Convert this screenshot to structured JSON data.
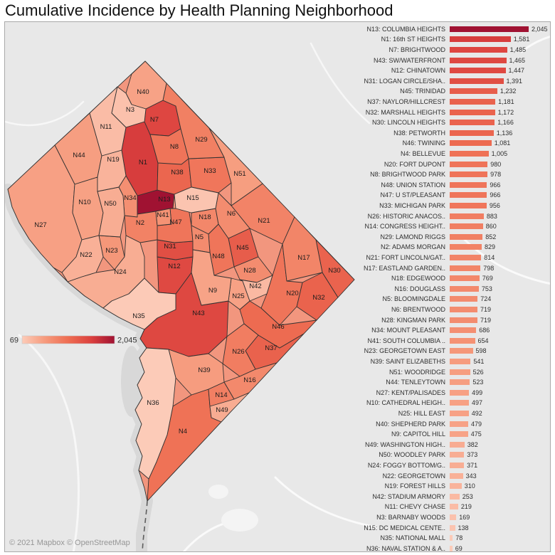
{
  "title": "Cumulative Incidence by Health Planning Neighborhood",
  "attribution": "© 2021 Mapbox © OpenStreetMap",
  "legend": {
    "min_label": "69",
    "max_label": "2,045",
    "min_value": 69,
    "max_value": 2045
  },
  "color_scale": {
    "min_value": 69,
    "max_value": 2045,
    "stops": [
      "#fccbb8",
      "#f69a7c",
      "#ee6d52",
      "#db403e",
      "#a01232"
    ]
  },
  "chart_data": {
    "type": "bar",
    "orientation": "horizontal",
    "title": "Cumulative Incidence by Health Planning Neighborhood",
    "value_range": [
      69,
      2045
    ],
    "legend_position": "middle-left-on-map",
    "grid": false,
    "neighborhoods": [
      {
        "code": "N13",
        "label": "N13: COLUMBIA HEIGHTS",
        "value": 2045
      },
      {
        "code": "N1",
        "label": "N1: 16th ST HEIGHTS",
        "value": 1581
      },
      {
        "code": "N7",
        "label": "N7: BRIGHTWOOD",
        "value": 1485
      },
      {
        "code": "N43",
        "label": "N43: SW/WATERFRONT",
        "value": 1465
      },
      {
        "code": "N12",
        "label": "N12: CHINATOWN",
        "value": 1447
      },
      {
        "code": "N31",
        "label": "N31: LOGAN CIRCLE/SHA..",
        "value": 1391
      },
      {
        "code": "N45",
        "label": "N45: TRINIDAD",
        "value": 1232
      },
      {
        "code": "N37",
        "label": "N37: NAYLOR/HILLCREST",
        "value": 1181
      },
      {
        "code": "N32",
        "label": "N32: MARSHALL HEIGHTS",
        "value": 1172
      },
      {
        "code": "N30",
        "label": "N30: LINCOLN HEIGHTS",
        "value": 1166
      },
      {
        "code": "N38",
        "label": "N38: PETWORTH",
        "value": 1136
      },
      {
        "code": "N46",
        "label": "N46: TWINING",
        "value": 1081
      },
      {
        "code": "N4",
        "label": "N4: BELLEVUE",
        "value": 1005
      },
      {
        "code": "N20",
        "label": "N20: FORT DUPONT",
        "value": 980
      },
      {
        "code": "N8",
        "label": "N8: BRIGHTWOOD PARK",
        "value": 978
      },
      {
        "code": "N48",
        "label": "N48: UNION STATION",
        "value": 966
      },
      {
        "code": "N47",
        "label": "N47: U ST/PLEASANT",
        "value": 966
      },
      {
        "code": "N33",
        "label": "N33: MICHIGAN PARK",
        "value": 956
      },
      {
        "code": "N26",
        "label": "N26: HISTORIC ANACOS..",
        "value": 883
      },
      {
        "code": "N14",
        "label": "N14: CONGRESS HEIGHT..",
        "value": 860
      },
      {
        "code": "N29",
        "label": "N29: LAMOND RIGGS",
        "value": 852
      },
      {
        "code": "N2",
        "label": "N2: ADAMS MORGAN",
        "value": 829
      },
      {
        "code": "N21",
        "label": "N21: FORT LINCOLN/GAT..",
        "value": 814
      },
      {
        "code": "N17",
        "label": "N17: EASTLAND GARDEN..",
        "value": 798
      },
      {
        "code": "N18",
        "label": "N18: EDGEWOOD",
        "value": 769
      },
      {
        "code": "N16",
        "label": "N16: DOUGLASS",
        "value": 753
      },
      {
        "code": "N5",
        "label": "N5: BLOOMINGDALE",
        "value": 724
      },
      {
        "code": "N6",
        "label": "N6: BRENTWOOD",
        "value": 719
      },
      {
        "code": "N28",
        "label": "N28: KINGMAN PARK",
        "value": 719
      },
      {
        "code": "N34",
        "label": "N34: MOUNT PLEASANT",
        "value": 686
      },
      {
        "code": "N41",
        "label": "N41: SOUTH COLUMBIA ..",
        "value": 654
      },
      {
        "code": "N23",
        "label": "N23: GEORGETOWN EAST",
        "value": 598
      },
      {
        "code": "N39",
        "label": "N39: SAINT ELIZABETHS",
        "value": 541
      },
      {
        "code": "N51",
        "label": "N51: WOODRIDGE",
        "value": 526
      },
      {
        "code": "N44",
        "label": "N44: TENLEYTOWN",
        "value": 523
      },
      {
        "code": "N27",
        "label": "N27: KENT/PALISADES",
        "value": 499
      },
      {
        "code": "N10",
        "label": "N10: CATHEDRAL HEIGH..",
        "value": 497
      },
      {
        "code": "N25",
        "label": "N25: HILL EAST",
        "value": 492
      },
      {
        "code": "N40",
        "label": "N40: SHEPHERD PARK",
        "value": 479
      },
      {
        "code": "N9",
        "label": "N9: CAPITOL HILL",
        "value": 475
      },
      {
        "code": "N49",
        "label": "N49: WASHINGTON HIGH..",
        "value": 382
      },
      {
        "code": "N50",
        "label": "N50: WOODLEY PARK",
        "value": 373
      },
      {
        "code": "N24",
        "label": "N24: FOGGY BOTTOM/G..",
        "value": 371
      },
      {
        "code": "N22",
        "label": "N22: GEORGETOWN",
        "value": 343
      },
      {
        "code": "N19",
        "label": "N19: FOREST HILLS",
        "value": 310
      },
      {
        "code": "N42",
        "label": "N42: STADIUM ARMORY",
        "value": 253
      },
      {
        "code": "N11",
        "label": "N11: CHEVY CHASE",
        "value": 219
      },
      {
        "code": "N3",
        "label": "N3: BARNABY WOODS",
        "value": 169
      },
      {
        "code": "N15",
        "label": "N15: DC MEDICAL CENTE..",
        "value": 138
      },
      {
        "code": "N35",
        "label": "N35: NATIONAL MALL",
        "value": 78
      },
      {
        "code": "N36",
        "label": "N36: NAVAL STATION & A..",
        "value": 69
      }
    ]
  }
}
